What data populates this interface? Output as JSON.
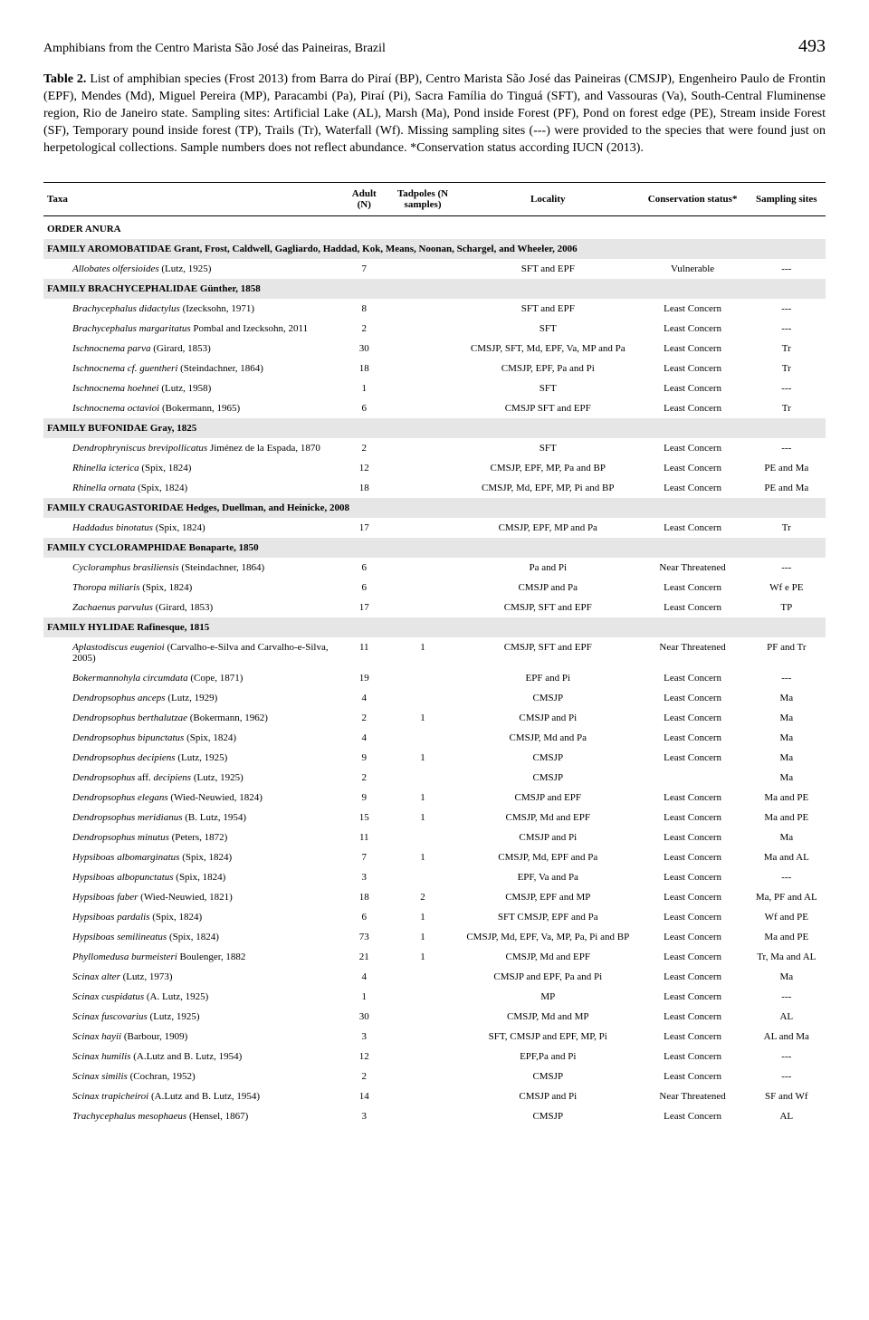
{
  "header": {
    "running_head": "Amphibians from the Centro Marista São José das Paineiras, Brazil",
    "page_number": "493"
  },
  "caption": {
    "label": "Table 2.",
    "text": "List of amphibian species (Frost 2013) from Barra do Piraí (BP), Centro Marista São José das Paineiras (CMSJP), Engenheiro Paulo de Frontin (EPF), Mendes (Md), Miguel Pereira (MP), Paracambi (Pa), Piraí (Pi), Sacra Família do Tinguá (SFT), and Vassouras (Va), South-Central Fluminense region, Rio de Janeiro state. Sampling sites: Artificial Lake (AL), Marsh (Ma), Pond inside Forest (PF), Pond on forest edge (PE), Stream inside Forest (SF), Temporary pound inside forest (TP), Trails (Tr), Waterfall (Wf). Missing sampling sites (---) were provided to the species that were found just on herpetological collections. Sample numbers does not reflect abundance. *Conservation status according IUCN (2013)."
  },
  "table": {
    "columns": {
      "taxa": "Taxa",
      "adult": "Adult (N)",
      "tadpoles": "Tadpoles (N samples)",
      "locality": "Locality",
      "conservation": "Conservation status*",
      "sampling": "Sampling sites"
    },
    "order": "ORDER ANURA",
    "rows": [
      {
        "type": "family",
        "taxa": "FAMILY AROMOBATIDAE Grant, Frost, Caldwell, Gagliardo, Haddad, Kok, Means, Noonan, Schargel, and Wheeler, 2006"
      },
      {
        "type": "sp",
        "taxa_i": "Allobates olfersioides",
        "taxa_r": " (Lutz, 1925)",
        "adult": "7",
        "tad": "",
        "loc": "SFT and EPF",
        "cons": "Vulnerable",
        "samp": "---"
      },
      {
        "type": "family",
        "taxa": "FAMILY BRACHYCEPHALIDAE Günther, 1858"
      },
      {
        "type": "sp",
        "taxa_i": "Brachycephalus didactylus",
        "taxa_r": " (Izecksohn, 1971)",
        "adult": "8",
        "tad": "",
        "loc": "SFT and EPF",
        "cons": "Least Concern",
        "samp": "---"
      },
      {
        "type": "sp",
        "taxa_i": "Brachycephalus margaritatus",
        "taxa_r": " Pombal and Izecksohn, 2011",
        "adult": "2",
        "tad": "",
        "loc": "SFT",
        "cons": "Least Concern",
        "samp": "---"
      },
      {
        "type": "sp",
        "taxa_i": "Ischnocnema parva",
        "taxa_r": " (Girard, 1853)",
        "adult": "30",
        "tad": "",
        "loc": "CMSJP, SFT, Md, EPF, Va, MP and Pa",
        "cons": "Least Concern",
        "samp": "Tr"
      },
      {
        "type": "sp",
        "taxa_i": "Ischnocnema cf. guentheri",
        "taxa_r": " (Steindachner, 1864)",
        "adult": "18",
        "tad": "",
        "loc": "CMSJP, EPF, Pa and Pi",
        "cons": "Least Concern",
        "samp": "Tr"
      },
      {
        "type": "sp",
        "taxa_i": "Ischnocnema hoehnei",
        "taxa_r": " (Lutz, 1958)",
        "adult": "1",
        "tad": "",
        "loc": "SFT",
        "cons": "Least Concern",
        "samp": "---"
      },
      {
        "type": "sp",
        "taxa_i": "Ischnocnema octavioi",
        "taxa_r": " (Bokermann, 1965)",
        "adult": "6",
        "tad": "",
        "loc": "CMSJP SFT and EPF",
        "cons": "Least Concern",
        "samp": "Tr"
      },
      {
        "type": "family",
        "taxa": "FAMILY BUFONIDAE Gray, 1825"
      },
      {
        "type": "sp",
        "taxa_i": "Dendrophryniscus brevipollicatus",
        "taxa_r": " Jiménez de la Espada, 1870",
        "adult": "2",
        "tad": "",
        "loc": "SFT",
        "cons": "Least Concern",
        "samp": "---"
      },
      {
        "type": "sp",
        "taxa_i": "Rhinella icterica",
        "taxa_r": " (Spix, 1824)",
        "adult": "12",
        "tad": "",
        "loc": "CMSJP, EPF, MP, Pa and BP",
        "cons": "Least Concern",
        "samp": "PE and Ma"
      },
      {
        "type": "sp",
        "taxa_i": "Rhinella ornata",
        "taxa_r": " (Spix, 1824)",
        "adult": "18",
        "tad": "",
        "loc": "CMSJP, Md, EPF, MP, Pi and BP",
        "cons": "Least Concern",
        "samp": "PE and Ma"
      },
      {
        "type": "family",
        "taxa": "FAMILY CRAUGASTORIDAE Hedges, Duellman, and Heinicke, 2008"
      },
      {
        "type": "sp",
        "taxa_i": "Haddadus binotatus",
        "taxa_r": " (Spix, 1824)",
        "adult": "17",
        "tad": "",
        "loc": "CMSJP, EPF, MP and  Pa",
        "cons": "Least Concern",
        "samp": "Tr"
      },
      {
        "type": "family",
        "taxa": "FAMILY CYCLORAMPHIDAE Bonaparte, 1850"
      },
      {
        "type": "sp",
        "taxa_i": "Cycloramphus brasiliensis",
        "taxa_r": " (Steindachner, 1864)",
        "adult": "6",
        "tad": "",
        "loc": "Pa and Pi",
        "cons": "Near Threatened",
        "samp": "---"
      },
      {
        "type": "sp",
        "taxa_i": "Thoropa miliaris",
        "taxa_r": " (Spix, 1824)",
        "adult": "6",
        "tad": "",
        "loc": "CMSJP and Pa",
        "cons": "Least Concern",
        "samp": "Wf e PE"
      },
      {
        "type": "sp",
        "taxa_i": "Zachaenus parvulus",
        "taxa_r": " (Girard, 1853)",
        "adult": "17",
        "tad": "",
        "loc": "CMSJP, SFT and EPF",
        "cons": "Least Concern",
        "samp": "TP"
      },
      {
        "type": "family",
        "taxa": "FAMILY HYLIDAE Rafinesque, 1815"
      },
      {
        "type": "sp",
        "taxa_i": "Aplastodiscus eugenioi",
        "taxa_r": " (Carvalho-e-Silva and Carvalho-e-Silva, 2005)",
        "adult": "11",
        "tad": "1",
        "loc": "CMSJP, SFT and EPF",
        "cons": "Near Threatened",
        "samp": "PF and Tr"
      },
      {
        "type": "sp",
        "taxa_i": "Bokermannohyla circumdata",
        "taxa_r": " (Cope, 1871)",
        "adult": "19",
        "tad": "",
        "loc": "EPF and Pi",
        "cons": "Least Concern",
        "samp": "---"
      },
      {
        "type": "sp",
        "taxa_i": "Dendropsophus anceps",
        "taxa_r": " (Lutz, 1929)",
        "adult": "4",
        "tad": "",
        "loc": "CMSJP",
        "cons": "Least Concern",
        "samp": "Ma"
      },
      {
        "type": "sp",
        "taxa_i": "Dendropsophus berthalutzae",
        "taxa_r": " (Bokermann, 1962)",
        "adult": "2",
        "tad": "1",
        "loc": "CMSJP and Pi",
        "cons": "Least Concern",
        "samp": "Ma"
      },
      {
        "type": "sp",
        "taxa_i": "Dendropsophus bipunctatus",
        "taxa_r": " (Spix, 1824)",
        "adult": "4",
        "tad": "",
        "loc": "CMSJP, Md and Pa",
        "cons": "Least Concern",
        "samp": "Ma"
      },
      {
        "type": "sp",
        "taxa_i": "Dendropsophus decipiens",
        "taxa_r": " (Lutz, 1925)",
        "adult": "9",
        "tad": "1",
        "loc": "CMSJP",
        "cons": "Least Concern",
        "samp": "Ma"
      },
      {
        "type": "sp",
        "taxa_i": "Dendropsophus",
        "taxa_r": " aff.",
        "taxa_i2": " decipiens",
        "taxa_r2": " (Lutz, 1925)",
        "adult": "2",
        "tad": "",
        "loc": "CMSJP",
        "cons": "",
        "samp": "Ma"
      },
      {
        "type": "sp",
        "taxa_i": "Dendropsophus elegans",
        "taxa_r": " (Wied-Neuwied, 1824)",
        "adult": "9",
        "tad": "1",
        "loc": "CMSJP and EPF",
        "cons": "Least Concern",
        "samp": "Ma and PE"
      },
      {
        "type": "sp",
        "taxa_i": "Dendropsophus meridianus",
        "taxa_r": " (B. Lutz, 1954)",
        "adult": "15",
        "tad": "1",
        "loc": "CMSJP, Md and EPF",
        "cons": "Least Concern",
        "samp": "Ma and PE"
      },
      {
        "type": "sp",
        "taxa_i": "Dendropsophus minutus",
        "taxa_r": " (Peters, 1872)",
        "adult": "11",
        "tad": "",
        "loc": "CMSJP and Pi",
        "cons": "Least Concern",
        "samp": "Ma"
      },
      {
        "type": "sp",
        "taxa_i": "Hypsiboas albomarginatus",
        "taxa_r": " (Spix, 1824)",
        "adult": "7",
        "tad": "1",
        "loc": "CMSJP, Md, EPF and Pa",
        "cons": "Least Concern",
        "samp": "Ma and AL"
      },
      {
        "type": "sp",
        "taxa_i": "Hypsiboas albopunctatus",
        "taxa_r": " (Spix, 1824)",
        "adult": "3",
        "tad": "",
        "loc": "EPF, Va and Pa",
        "cons": "Least Concern",
        "samp": "---"
      },
      {
        "type": "sp",
        "taxa_i": "Hypsiboas faber",
        "taxa_r": " (Wied-Neuwied, 1821)",
        "adult": "18",
        "tad": "2",
        "loc": "CMSJP, EPF and MP",
        "cons": "Least Concern",
        "samp": "Ma, PF and AL"
      },
      {
        "type": "sp",
        "taxa_i": "Hypsiboas pardalis",
        "taxa_r": " (Spix, 1824)",
        "adult": "6",
        "tad": "1",
        "loc": "SFT CMSJP, EPF and Pa",
        "cons": "Least Concern",
        "samp": "Wf and PE"
      },
      {
        "type": "sp",
        "taxa_i": "Hypsiboas semilineatus",
        "taxa_r": " (Spix, 1824)",
        "adult": "73",
        "tad": "1",
        "loc": "CMSJP, Md, EPF, Va, MP, Pa, Pi and BP",
        "cons": "Least Concern",
        "samp": "Ma and PE"
      },
      {
        "type": "sp",
        "taxa_i": "Phyllomedusa burmeisteri",
        "taxa_r": " Boulenger, 1882",
        "adult": "21",
        "tad": "1",
        "loc": "CMSJP, Md and EPF",
        "cons": "Least Concern",
        "samp": "Tr, Ma and AL"
      },
      {
        "type": "sp",
        "taxa_i": "Scinax alter",
        "taxa_r": " (Lutz, 1973)",
        "adult": "4",
        "tad": "",
        "loc": "CMSJP and EPF, Pa and Pi",
        "cons": "Least Concern",
        "samp": "Ma"
      },
      {
        "type": "sp",
        "taxa_i": "Scinax cuspidatus",
        "taxa_r": " (A. Lutz, 1925)",
        "adult": "1",
        "tad": "",
        "loc": "MP",
        "cons": "Least Concern",
        "samp": "---"
      },
      {
        "type": "sp",
        "taxa_i": "Scinax fuscovarius",
        "taxa_r": " (Lutz, 1925)",
        "adult": "30",
        "tad": "",
        "loc": "CMSJP, Md and MP",
        "cons": "Least Concern",
        "samp": "AL"
      },
      {
        "type": "sp",
        "taxa_i": "Scinax hayii",
        "taxa_r": " (Barbour, 1909)",
        "adult": "3",
        "tad": "",
        "loc": "SFT, CMSJP and EPF, MP, Pi",
        "cons": "Least Concern",
        "samp": "AL and Ma"
      },
      {
        "type": "sp",
        "taxa_i": "Scinax humilis",
        "taxa_r": " (A.Lutz and B. Lutz, 1954)",
        "adult": "12",
        "tad": "",
        "loc": "EPF,Pa and Pi",
        "cons": "Least Concern",
        "samp": "---"
      },
      {
        "type": "sp",
        "taxa_i": "Scinax similis",
        "taxa_r": " (Cochran, 1952)",
        "adult": "2",
        "tad": "",
        "loc": "CMSJP",
        "cons": "Least Concern",
        "samp": "---"
      },
      {
        "type": "sp",
        "taxa_i": "Scinax trapicheiroi",
        "taxa_r": " (A.Lutz and B. Lutz, 1954)",
        "adult": "14",
        "tad": "",
        "loc": "CMSJP and Pi",
        "cons": "Near Threatened",
        "samp": "SF and Wf"
      },
      {
        "type": "sp",
        "taxa_i": "Trachycephalus mesophaeus",
        "taxa_r": " (Hensel, 1867)",
        "adult": "3",
        "tad": "",
        "loc": "CMSJP",
        "cons": "Least Concern",
        "samp": "AL"
      }
    ]
  }
}
